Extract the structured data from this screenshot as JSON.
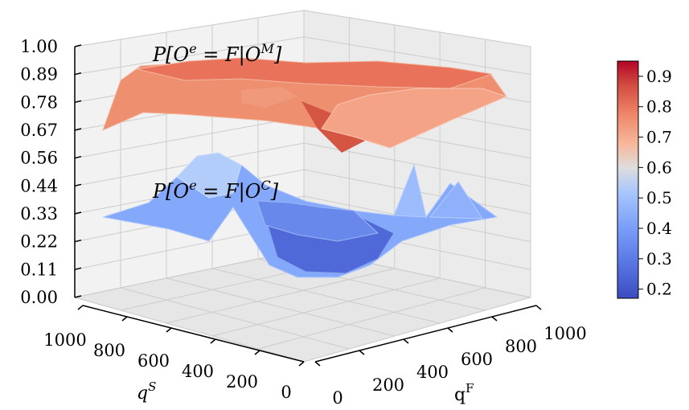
{
  "chart_data": {
    "type": "surface3d",
    "z_axis": {
      "ticks": [
        "0.00",
        "0.11",
        "0.22",
        "0.33",
        "0.44",
        "0.56",
        "0.67",
        "0.78",
        "0.89",
        "1.00"
      ],
      "range": [
        0,
        1
      ]
    },
    "x_axis": {
      "label": "qF",
      "ticks": [
        "0",
        "200",
        "400",
        "600",
        "800",
        "1000"
      ],
      "range": [
        0,
        1000
      ]
    },
    "y_axis": {
      "label": "qS",
      "ticks": [
        "1000",
        "800",
        "600",
        "400",
        "200",
        "0"
      ],
      "range": [
        0,
        1000
      ]
    },
    "colorbar": {
      "colormap": "coolwarm",
      "ticks": [
        "0.9",
        "0.8",
        "0.7",
        "0.6",
        "0.5",
        "0.4",
        "0.3",
        "0.2"
      ],
      "range": [
        0.17,
        0.95
      ]
    },
    "series": [
      {
        "name": "P[Oᵉ = F|Oᴹ]",
        "approx_level": 0.8,
        "range": [
          0.72,
          0.93
        ]
      },
      {
        "name": "P[Oᵉ = F|Oᶜ]",
        "approx_level": 0.3,
        "range": [
          0.15,
          0.6
        ]
      }
    ],
    "grid": true
  }
}
